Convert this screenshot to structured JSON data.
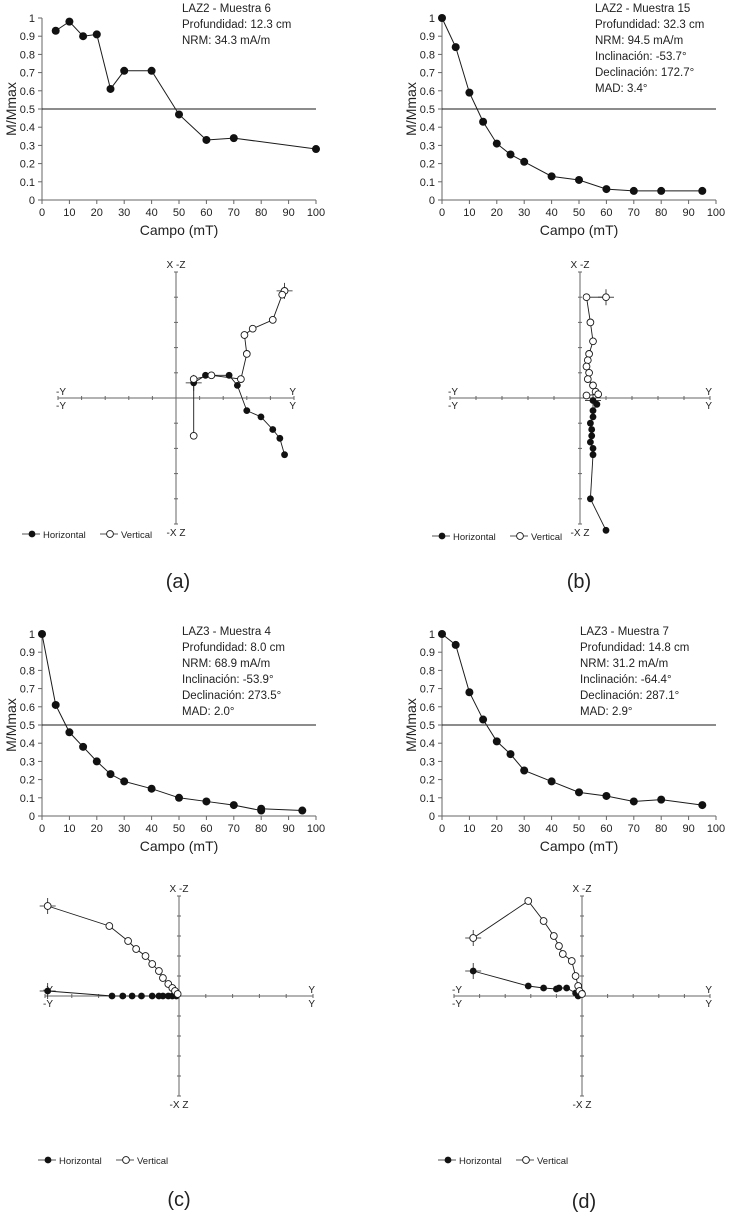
{
  "colors": {
    "axis": "#666666",
    "line": "#1a1a1a",
    "fill_dot": "#111111",
    "open_dot": "#ffffff",
    "text": "#222222"
  },
  "zij_labels": {
    "top": "X -Z",
    "bottom": "-X Z",
    "left": "-Y",
    "right": "Y",
    "legend_h": "Horizontal",
    "legend_v": "Vertical"
  },
  "chart_data": [
    {
      "id": "a",
      "type": "line",
      "panel_label": "(a)",
      "title": "LAZ2 - Muestra 6",
      "info": [
        "Profundidad: 12.3 cm",
        "NRM: 34.3 mA/m"
      ],
      "xlabel": "Campo (mT)",
      "ylabel": "M/Mmax",
      "xlim": [
        0,
        100
      ],
      "ylim": [
        0,
        1
      ],
      "xticks": [
        0,
        10,
        20,
        30,
        40,
        50,
        60,
        70,
        80,
        90,
        100
      ],
      "yticks": [
        0,
        0.1,
        0.2,
        0.3,
        0.4,
        0.5,
        0.6,
        0.7,
        0.8,
        0.9,
        1
      ],
      "ref_line": 0.5,
      "x": [
        5,
        10,
        15,
        20,
        25,
        30,
        40,
        50,
        60,
        70,
        100
      ],
      "y": [
        0.93,
        0.98,
        0.9,
        0.91,
        0.61,
        0.71,
        0.71,
        0.47,
        0.33,
        0.34,
        0.28
      ],
      "zij_xlim": [
        -1,
        1
      ],
      "zij_ylim": [
        -1,
        1
      ],
      "zij_horizontal": [
        [
          0.15,
          0.12
        ],
        [
          0.25,
          0.18
        ],
        [
          0.45,
          0.18
        ],
        [
          0.52,
          0.1
        ],
        [
          0.6,
          -0.1
        ],
        [
          0.72,
          -0.15
        ],
        [
          0.82,
          -0.25
        ],
        [
          0.88,
          -0.32
        ],
        [
          0.92,
          -0.45
        ]
      ],
      "zij_vertical": [
        [
          0.92,
          0.85
        ],
        [
          0.9,
          0.82
        ],
        [
          0.82,
          0.62
        ],
        [
          0.65,
          0.55
        ],
        [
          0.58,
          0.5
        ],
        [
          0.6,
          0.35
        ],
        [
          0.55,
          0.15
        ],
        [
          0.3,
          0.18
        ],
        [
          0.15,
          0.15
        ],
        [
          0.15,
          -0.3
        ]
      ],
      "legend_style": "dash"
    },
    {
      "id": "b",
      "type": "line",
      "panel_label": "(b)",
      "title": "LAZ2 - Muestra 15",
      "info": [
        "Profundidad: 32.3 cm",
        "NRM: 94.5 mA/m",
        "Inclinación: -53.7°",
        "Declinación: 172.7°",
        "MAD: 3.4°"
      ],
      "xlabel": "Campo (mT)",
      "ylabel": "M/Mmax",
      "xlim": [
        0,
        100
      ],
      "ylim": [
        0,
        1
      ],
      "xticks": [
        0,
        10,
        20,
        30,
        40,
        50,
        60,
        70,
        80,
        90,
        100
      ],
      "yticks": [
        0,
        0.1,
        0.2,
        0.3,
        0.4,
        0.5,
        0.6,
        0.7,
        0.8,
        0.9,
        1
      ],
      "ref_line": 0.5,
      "x": [
        0,
        5,
        10,
        15,
        20,
        25,
        30,
        40,
        50,
        60,
        70,
        80,
        95
      ],
      "y": [
        1.0,
        0.84,
        0.59,
        0.43,
        0.31,
        0.25,
        0.21,
        0.13,
        0.11,
        0.06,
        0.05,
        0.05,
        0.05
      ],
      "zij_xlim": [
        -1,
        1
      ],
      "zij_ylim": [
        -1,
        1
      ],
      "zij_horizontal": [
        [
          0.1,
          -0.02
        ],
        [
          0.13,
          -0.05
        ],
        [
          0.1,
          -0.1
        ],
        [
          0.1,
          -0.15
        ],
        [
          0.08,
          -0.2
        ],
        [
          0.09,
          -0.25
        ],
        [
          0.09,
          -0.3
        ],
        [
          0.08,
          -0.35
        ],
        [
          0.1,
          -0.4
        ],
        [
          0.1,
          -0.45
        ],
        [
          0.08,
          -0.8
        ],
        [
          0.2,
          -1.05
        ]
      ],
      "zij_vertical": [
        [
          0.2,
          0.8
        ],
        [
          0.05,
          0.8
        ],
        [
          0.08,
          0.6
        ],
        [
          0.1,
          0.45
        ],
        [
          0.07,
          0.35
        ],
        [
          0.06,
          0.3
        ],
        [
          0.05,
          0.25
        ],
        [
          0.07,
          0.2
        ],
        [
          0.06,
          0.15
        ],
        [
          0.1,
          0.1
        ],
        [
          0.12,
          0.05
        ],
        [
          0.14,
          0.03
        ],
        [
          0.05,
          0.02
        ]
      ],
      "legend_style": "dash"
    },
    {
      "id": "c",
      "type": "line",
      "panel_label": "(c)",
      "title": "LAZ3 - Muestra 4",
      "info": [
        "Profundidad: 8.0 cm",
        "NRM: 68.9 mA/m",
        "Inclinación: -53.9°",
        "Declinación: 273.5°",
        "MAD: 2.0°"
      ],
      "xlabel": "Campo (mT)",
      "ylabel": "M/Mmax",
      "xlim": [
        0,
        100
      ],
      "ylim": [
        0,
        1
      ],
      "xticks": [
        0,
        10,
        20,
        30,
        40,
        50,
        60,
        70,
        80,
        90,
        100
      ],
      "yticks": [
        0,
        0.1,
        0.2,
        0.3,
        0.4,
        0.5,
        0.6,
        0.7,
        0.8,
        0.9,
        1
      ],
      "ref_line": 0.5,
      "x": [
        0,
        5,
        10,
        15,
        20,
        25,
        30,
        40,
        50,
        60,
        70,
        80,
        80,
        95
      ],
      "y": [
        1.0,
        0.61,
        0.46,
        0.38,
        0.3,
        0.23,
        0.19,
        0.15,
        0.1,
        0.08,
        0.06,
        0.03,
        0.04,
        0.03
      ],
      "zij_xlim": [
        -1,
        1
      ],
      "zij_ylim": [
        -1,
        1
      ],
      "zij_horizontal": [
        [
          -0.98,
          0.05
        ],
        [
          -0.5,
          0.0
        ],
        [
          -0.42,
          0.0
        ],
        [
          -0.35,
          0.0
        ],
        [
          -0.28,
          0.0
        ],
        [
          -0.2,
          0.0
        ],
        [
          -0.15,
          0.0
        ],
        [
          -0.12,
          0.0
        ],
        [
          -0.08,
          0.0
        ],
        [
          -0.05,
          0.0
        ],
        [
          -0.02,
          0.0
        ]
      ],
      "zij_vertical": [
        [
          -0.98,
          0.9
        ],
        [
          -0.52,
          0.7
        ],
        [
          -0.38,
          0.55
        ],
        [
          -0.32,
          0.47
        ],
        [
          -0.25,
          0.4
        ],
        [
          -0.2,
          0.32
        ],
        [
          -0.15,
          0.25
        ],
        [
          -0.12,
          0.18
        ],
        [
          -0.08,
          0.12
        ],
        [
          -0.05,
          0.08
        ],
        [
          -0.03,
          0.05
        ],
        [
          -0.01,
          0.02
        ]
      ],
      "legend_style": "dash"
    },
    {
      "id": "d",
      "type": "line",
      "panel_label": "(d)",
      "title": "LAZ3 - Muestra 7",
      "info": [
        "Profundidad: 14.8 cm",
        "NRM: 31.2 mA/m",
        "Inclinación: -64.4°",
        "Declinación: 287.1°",
        "MAD: 2.9°"
      ],
      "xlabel": "Campo (mT)",
      "ylabel": "M/Mmax",
      "xlim": [
        0,
        100
      ],
      "ylim": [
        0,
        1
      ],
      "xticks": [
        0,
        10,
        20,
        30,
        40,
        50,
        60,
        70,
        80,
        90,
        100
      ],
      "yticks": [
        0,
        0.1,
        0.2,
        0.3,
        0.4,
        0.5,
        0.6,
        0.7,
        0.8,
        0.9,
        1
      ],
      "ref_line": 0.5,
      "x": [
        0,
        5,
        10,
        15,
        20,
        25,
        30,
        40,
        50,
        60,
        70,
        80,
        95
      ],
      "y": [
        1.0,
        0.94,
        0.68,
        0.53,
        0.41,
        0.34,
        0.25,
        0.19,
        0.13,
        0.11,
        0.08,
        0.09,
        0.06
      ],
      "zij_xlim": [
        -1,
        1
      ],
      "zij_ylim": [
        -1,
        1
      ],
      "zij_horizontal": [
        [
          -0.85,
          0.25
        ],
        [
          -0.42,
          0.1
        ],
        [
          -0.3,
          0.08
        ],
        [
          -0.2,
          0.07
        ],
        [
          -0.18,
          0.08
        ],
        [
          -0.12,
          0.08
        ],
        [
          -0.05,
          0.03
        ],
        [
          -0.03,
          0.0
        ],
        [
          0.0,
          0.03
        ]
      ],
      "zij_vertical": [
        [
          -0.85,
          0.58
        ],
        [
          -0.42,
          0.95
        ],
        [
          -0.3,
          0.75
        ],
        [
          -0.22,
          0.6
        ],
        [
          -0.18,
          0.5
        ],
        [
          -0.15,
          0.42
        ],
        [
          -0.08,
          0.35
        ],
        [
          -0.05,
          0.2
        ],
        [
          -0.03,
          0.1
        ],
        [
          -0.02,
          0.05
        ],
        [
          0.0,
          0.02
        ]
      ],
      "legend_style": "dot"
    }
  ]
}
